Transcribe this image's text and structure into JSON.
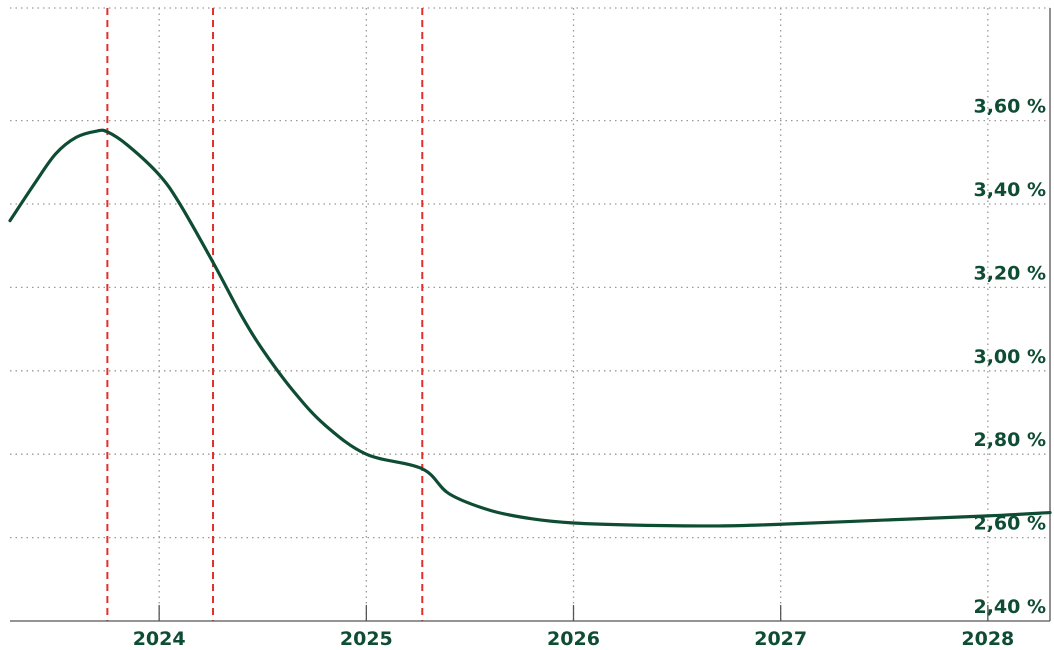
{
  "chart_data": {
    "type": "line",
    "title": "",
    "xlabel": "",
    "ylabel": "",
    "xlim": [
      2023.28,
      2028.3
    ],
    "ylim": [
      2.4,
      3.87
    ],
    "x_ticks": [
      {
        "value": 2024,
        "label": "2024"
      },
      {
        "value": 2025,
        "label": "2025"
      },
      {
        "value": 2026,
        "label": "2026"
      },
      {
        "value": 2027,
        "label": "2027"
      },
      {
        "value": 2028,
        "label": "2028"
      }
    ],
    "y_ticks": [
      {
        "value": 2.4,
        "label": "2,40 %"
      },
      {
        "value": 2.6,
        "label": "2,60 %"
      },
      {
        "value": 2.8,
        "label": "2,80 %"
      },
      {
        "value": 3.0,
        "label": "3,00 %"
      },
      {
        "value": 3.2,
        "label": "3,20 %"
      },
      {
        "value": 3.4,
        "label": "3,40 %"
      },
      {
        "value": 3.6,
        "label": "3,60 %"
      }
    ],
    "grid": true,
    "legend": "none",
    "vertical_markers": [
      2023.75,
      2024.26,
      2025.27
    ],
    "series": [
      {
        "name": "",
        "color": "#0e4d33",
        "points": [
          [
            2023.28,
            3.36
          ],
          [
            2023.4,
            3.45
          ],
          [
            2023.5,
            3.52
          ],
          [
            2023.6,
            3.56
          ],
          [
            2023.7,
            3.575
          ],
          [
            2023.75,
            3.573
          ],
          [
            2023.85,
            3.54
          ],
          [
            2024.0,
            3.47
          ],
          [
            2024.1,
            3.4
          ],
          [
            2024.26,
            3.26
          ],
          [
            2024.4,
            3.13
          ],
          [
            2024.5,
            3.05
          ],
          [
            2024.65,
            2.95
          ],
          [
            2024.8,
            2.87
          ],
          [
            2025.0,
            2.8
          ],
          [
            2025.27,
            2.765
          ],
          [
            2025.4,
            2.705
          ],
          [
            2025.6,
            2.665
          ],
          [
            2025.8,
            2.645
          ],
          [
            2026.0,
            2.635
          ],
          [
            2026.3,
            2.63
          ],
          [
            2026.7,
            2.628
          ],
          [
            2027.0,
            2.632
          ],
          [
            2027.5,
            2.642
          ],
          [
            2028.0,
            2.652
          ],
          [
            2028.3,
            2.66
          ]
        ]
      }
    ]
  }
}
